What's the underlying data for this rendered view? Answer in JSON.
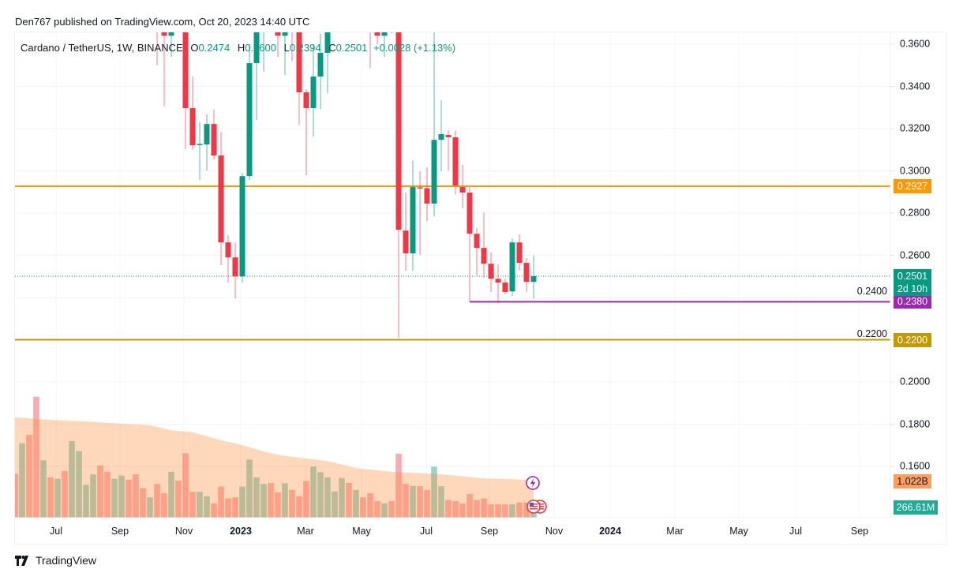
{
  "published": "Den767 published on TradingView.com, Oct 20, 2023 14:40 UTC",
  "legend": {
    "symbol": "Cardano / TetherUS, 1W, BINANCE",
    "o_label": "O",
    "o": "0.2474",
    "h_label": "H",
    "h": "0.2600",
    "l_label": "L",
    "l": "0.2394",
    "c_label": "C",
    "c": "0.2501",
    "change": "+0.0028 (+1.13%)"
  },
  "brand": "TradingView",
  "colors": {
    "up": "#089981",
    "down": "#f23645",
    "line_orange": "#ff9800",
    "line_purple": "#9c27b0",
    "line_gold": "#c49a00",
    "volume_ma": "#ff8c3c"
  },
  "chart_data": {
    "type": "candlestick",
    "interval": "1W",
    "ylim": [
      0.155,
      0.366
    ],
    "y_ticks": [
      "0.3600",
      "0.3400",
      "0.3200",
      "0.3000",
      "0.2800",
      "0.2600",
      "0.2400",
      "0.2200",
      "0.2000",
      "0.1800",
      "0.1600"
    ],
    "x_ticks": [
      {
        "label": "Jul",
        "date": "2022-07-01"
      },
      {
        "label": "Sep",
        "date": "2022-09-01"
      },
      {
        "label": "Nov",
        "date": "2022-11-01"
      },
      {
        "label": "2023",
        "date": "2023-01-01",
        "bold": true
      },
      {
        "label": "Mar",
        "date": "2023-03-01"
      },
      {
        "label": "May",
        "date": "2023-05-01"
      },
      {
        "label": "Jul",
        "date": "2023-07-01"
      },
      {
        "label": "Sep",
        "date": "2023-09-01"
      },
      {
        "label": "Nov",
        "date": "2023-11-01"
      },
      {
        "label": "2024",
        "date": "2024-01-01",
        "bold": true
      },
      {
        "label": "Mar",
        "date": "2024-03-01"
      },
      {
        "label": "May",
        "date": "2024-05-01"
      },
      {
        "label": "Jul",
        "date": "2024-07-01"
      },
      {
        "label": "Sep",
        "date": "2024-09-01"
      }
    ],
    "grid": true,
    "candle_columns": [
      "date",
      "open",
      "high",
      "low",
      "close"
    ],
    "candles": [
      [
        "2022-10-10",
        0.39,
        0.4,
        0.35,
        0.375
      ],
      [
        "2022-10-17",
        0.375,
        0.38,
        0.3305,
        0.364
      ],
      [
        "2022-10-24",
        0.364,
        0.375,
        0.354,
        0.372
      ],
      [
        "2022-11-07",
        0.395,
        0.4,
        0.3103,
        0.3297
      ],
      [
        "2022-11-14",
        0.3297,
        0.3447,
        0.31,
        0.3121
      ],
      [
        "2022-11-21",
        0.3122,
        0.323,
        0.2957,
        0.3128
      ],
      [
        "2022-11-28",
        0.3125,
        0.3267,
        0.3002,
        0.3222
      ],
      [
        "2022-12-05",
        0.3222,
        0.329,
        0.3054,
        0.3073
      ],
      [
        "2022-12-12",
        0.3073,
        0.3185,
        0.2553,
        0.2661
      ],
      [
        "2022-12-19",
        0.2661,
        0.2695,
        0.2471,
        0.259
      ],
      [
        "2022-12-26",
        0.259,
        0.2661,
        0.2396,
        0.25
      ],
      [
        "2023-01-02",
        0.25,
        0.299,
        0.2471,
        0.2975
      ],
      [
        "2023-01-09",
        0.2975,
        0.36,
        0.2957,
        0.351
      ],
      [
        "2023-01-16",
        0.351,
        0.375,
        0.324,
        0.37
      ],
      [
        "2023-01-23",
        0.37,
        0.39,
        0.347,
        0.38
      ],
      [
        "2023-02-06",
        0.368,
        0.37,
        0.354,
        0.364
      ],
      [
        "2023-02-13",
        0.364,
        0.372,
        0.3454,
        0.368
      ],
      [
        "2023-02-20",
        0.39,
        0.395,
        0.352,
        0.37
      ],
      [
        "2023-02-27",
        0.385,
        0.39,
        0.3218,
        0.3372
      ],
      [
        "2023-03-06",
        0.3372,
        0.3387,
        0.2979,
        0.3297
      ],
      [
        "2023-03-13",
        0.3297,
        0.36,
        0.3162,
        0.3447
      ],
      [
        "2023-03-20",
        0.3447,
        0.365,
        0.3293,
        0.3559
      ],
      [
        "2023-03-27",
        0.3559,
        0.375,
        0.3368,
        0.37
      ],
      [
        "2023-05-08",
        0.38,
        0.39,
        0.3488,
        0.37
      ],
      [
        "2023-05-15",
        0.37,
        0.372,
        0.36,
        0.364
      ],
      [
        "2023-05-22",
        0.364,
        0.38,
        0.354,
        0.37
      ],
      [
        "2023-05-29",
        0.375,
        0.38,
        0.365,
        0.368
      ],
      [
        "2023-06-05",
        0.37,
        0.375,
        0.2209,
        0.2721
      ],
      [
        "2023-06-12",
        0.2717,
        0.2897,
        0.2527,
        0.2609
      ],
      [
        "2023-06-19",
        0.2609,
        0.305,
        0.2527,
        0.2923
      ],
      [
        "2023-06-26",
        0.2922,
        0.2998,
        0.2601,
        0.2918
      ],
      [
        "2023-07-03",
        0.2918,
        0.3017,
        0.2762,
        0.2845
      ],
      [
        "2023-07-10",
        0.2845,
        0.366,
        0.2785,
        0.3147
      ],
      [
        "2023-07-17",
        0.3147,
        0.3334,
        0.2998,
        0.3174
      ],
      [
        "2023-07-24",
        0.317,
        0.3192,
        0.3002,
        0.3159
      ],
      [
        "2023-07-31",
        0.3159,
        0.3192,
        0.2889,
        0.2931
      ],
      [
        "2023-08-07",
        0.2923,
        0.3028,
        0.2822,
        0.2897
      ],
      [
        "2023-08-14",
        0.2897,
        0.2923,
        0.2381,
        0.2702
      ],
      [
        "2023-08-21",
        0.2702,
        0.2729,
        0.2504,
        0.2635
      ],
      [
        "2023-08-28",
        0.2635,
        0.2803,
        0.2493,
        0.256
      ],
      [
        "2023-09-04",
        0.256,
        0.2613,
        0.2426,
        0.2489
      ],
      [
        "2023-09-11",
        0.2489,
        0.2557,
        0.2373,
        0.2471
      ],
      [
        "2023-09-18",
        0.2471,
        0.2489,
        0.2415,
        0.2426
      ],
      [
        "2023-09-25",
        0.2429,
        0.268,
        0.2407,
        0.2661
      ],
      [
        "2023-10-02",
        0.2661,
        0.2699,
        0.2527,
        0.2564
      ],
      [
        "2023-10-09",
        0.2564,
        0.2587,
        0.2426,
        0.2474
      ],
      [
        "2023-10-16",
        0.2474,
        0.26,
        0.2394,
        0.2501
      ]
    ],
    "horizontal_lines": [
      {
        "price": 0.2927,
        "label": "0.2927",
        "color": "#ff9800",
        "from": "start"
      },
      {
        "price": 0.238,
        "label": "0.2380",
        "color": "#9c27b0",
        "from": "2023-08-14"
      },
      {
        "price": 0.22,
        "label": "0.2200",
        "color": "#c49a00",
        "from": "start"
      }
    ],
    "last_price": {
      "price": 0.2501,
      "label": "0.2501",
      "countdown": "2d 10h",
      "color": "#089981"
    },
    "volume": {
      "start_week": "2022-05-23",
      "unit": "B",
      "values": [
        1.19,
        2.01,
        2.24,
        3.27,
        1.55,
        1.09,
        1.05,
        1.26,
        2.07,
        1.8,
        0.89,
        1.17,
        1.41,
        1.24,
        1.05,
        1.14,
        1.03,
        1.17,
        0.8,
        0.55,
        0.91,
        0.66,
        1.24,
        1.0,
        1.74,
        0.7,
        0.7,
        0.58,
        0.39,
        0.84,
        0.52,
        0.55,
        0.84,
        1.57,
        1.09,
        0.91,
        0.94,
        0.68,
        0.93,
        0.75,
        0.58,
        0.99,
        1.38,
        1.23,
        1.09,
        0.71,
        1.07,
        0.94,
        0.75,
        0.55,
        0.66,
        0.45,
        0.39,
        0.45,
        1.73,
        0.91,
        0.86,
        0.85,
        0.75,
        1.38,
        0.85,
        0.48,
        0.45,
        0.39,
        0.64,
        0.48,
        0.52,
        0.36,
        0.36,
        0.36,
        0.36,
        0.41,
        0.41,
        0.2666
      ],
      "direction": [
        "d",
        "u",
        "d",
        "d",
        "u",
        "d",
        "u",
        "d",
        "u",
        "u",
        "u",
        "u",
        "d",
        "d",
        "u",
        "u",
        "d",
        "d",
        "d",
        "u",
        "d",
        "d",
        "u",
        "d",
        "d",
        "d",
        "u",
        "u",
        "d",
        "d",
        "d",
        "d",
        "u",
        "u",
        "u",
        "u",
        "d",
        "d",
        "u",
        "d",
        "d",
        "d",
        "u",
        "u",
        "u",
        "u",
        "u",
        "d",
        "u",
        "d",
        "d",
        "d",
        "u",
        "d",
        "d",
        "d",
        "u",
        "d",
        "d",
        "u",
        "u",
        "d",
        "d",
        "d",
        "d",
        "d",
        "d",
        "d",
        "d",
        "d",
        "u",
        "d",
        "d",
        "u"
      ],
      "last_label": "266.61M",
      "ma_label": "1.022B",
      "ma_points": [
        [
          "2022-05-23",
          2.71
        ],
        [
          "2022-07-04",
          2.63
        ],
        [
          "2022-07-25",
          2.61
        ],
        [
          "2022-09-05",
          2.54
        ],
        [
          "2022-10-03",
          2.5
        ],
        [
          "2022-10-24",
          2.36
        ],
        [
          "2022-11-14",
          2.31
        ],
        [
          "2022-12-12",
          2.09
        ],
        [
          "2022-12-26",
          2.01
        ],
        [
          "2023-01-09",
          1.9
        ],
        [
          "2023-01-30",
          1.74
        ],
        [
          "2023-02-13",
          1.67
        ],
        [
          "2023-02-27",
          1.62
        ],
        [
          "2023-03-27",
          1.53
        ],
        [
          "2023-04-24",
          1.34
        ],
        [
          "2023-05-29",
          1.24
        ],
        [
          "2023-07-10",
          1.19
        ],
        [
          "2023-08-07",
          1.12
        ],
        [
          "2023-08-28",
          1.06
        ],
        [
          "2023-10-16",
          1.022
        ]
      ]
    },
    "event_icons": [
      "lightning-icon",
      "us-flag-icon",
      "us-flag-icon"
    ]
  }
}
